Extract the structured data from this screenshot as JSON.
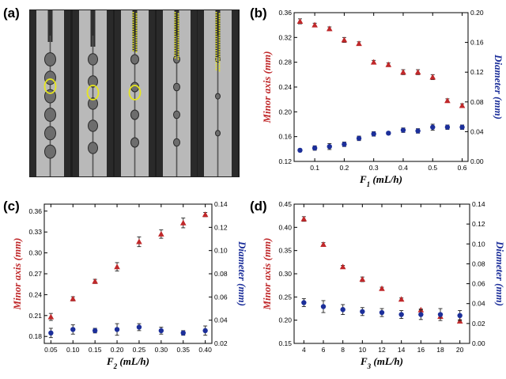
{
  "panel_a": {
    "label": "(a)",
    "description_colors": {
      "highlight": "#e6e61e",
      "frame": "#1a1a1a"
    }
  },
  "colors": {
    "left_series": "#c0282a",
    "right_series": "#1c2f9a"
  },
  "chart_data": [
    {
      "type": "scatter",
      "panel": "(b)",
      "xlabel": "F",
      "xlabel_sub": "1",
      "xlabel_unit": " (mL/h)",
      "ylabel_left": "Minor axis (mm)",
      "ylabel_right": "Diameter (mm)",
      "xlim": [
        0.03,
        0.62
      ],
      "xticks": [
        "0.1",
        "0.2",
        "0.3",
        "0.4",
        "0.5",
        "0.6"
      ],
      "xtick_values": [
        0.1,
        0.2,
        0.3,
        0.4,
        0.5,
        0.6
      ],
      "ylim_left": [
        0.12,
        0.36
      ],
      "yticks_left": [
        "0.12",
        "0.16",
        "0.20",
        "0.24",
        "0.28",
        "0.32",
        "0.36"
      ],
      "ylim_right": [
        0.0,
        0.2
      ],
      "yticks_right": [
        "0.00",
        "0.04",
        "0.08",
        "0.12",
        "0.16",
        "0.20"
      ],
      "series": [
        {
          "name": "Minor axis",
          "axis": "left",
          "marker": "triangle",
          "x": [
            0.05,
            0.1,
            0.15,
            0.2,
            0.25,
            0.3,
            0.35,
            0.4,
            0.45,
            0.5,
            0.55,
            0.6
          ],
          "y": [
            0.346,
            0.34,
            0.334,
            0.316,
            0.31,
            0.28,
            0.276,
            0.264,
            0.264,
            0.256,
            0.218,
            0.21
          ],
          "err": [
            0.004,
            0.003,
            0.003,
            0.004,
            0.003,
            0.003,
            0.003,
            0.004,
            0.004,
            0.004,
            0.003,
            0.003
          ]
        },
        {
          "name": "Diameter",
          "axis": "right",
          "marker": "circle",
          "x": [
            0.05,
            0.1,
            0.15,
            0.2,
            0.25,
            0.3,
            0.35,
            0.4,
            0.45,
            0.5,
            0.55,
            0.6
          ],
          "y": [
            0.015,
            0.018,
            0.02,
            0.023,
            0.031,
            0.037,
            0.038,
            0.042,
            0.041,
            0.046,
            0.046,
            0.046
          ],
          "err": [
            0.002,
            0.003,
            0.004,
            0.003,
            0.003,
            0.003,
            0.002,
            0.003,
            0.003,
            0.004,
            0.003,
            0.003
          ]
        }
      ]
    },
    {
      "type": "scatter",
      "panel": "(c)",
      "xlabel": "F",
      "xlabel_sub": "2",
      "xlabel_unit": " (mL/h)",
      "ylabel_left": "Minor axis (mm)",
      "ylabel_right": "Diameter (mm)",
      "xlim": [
        0.035,
        0.415
      ],
      "xticks": [
        "0.05",
        "0.10",
        "0.15",
        "0.20",
        "0.25",
        "0.30",
        "0.35",
        "0.40"
      ],
      "xtick_values": [
        0.05,
        0.1,
        0.15,
        0.2,
        0.25,
        0.3,
        0.35,
        0.4
      ],
      "ylim_left": [
        0.17,
        0.37
      ],
      "yticks_left": [
        "0.18",
        "0.21",
        "0.24",
        "0.27",
        "0.30",
        "0.33",
        "0.36"
      ],
      "ytick_values_left": [
        0.18,
        0.21,
        0.24,
        0.27,
        0.3,
        0.33,
        0.36
      ],
      "ylim_right": [
        0.02,
        0.14
      ],
      "yticks_right": [
        "0.02",
        "0.04",
        "0.06",
        "0.08",
        "0.10",
        "0.12",
        "0.14"
      ],
      "series": [
        {
          "name": "Minor axis",
          "axis": "left",
          "marker": "triangle",
          "x": [
            0.05,
            0.1,
            0.15,
            0.2,
            0.25,
            0.3,
            0.35,
            0.4
          ],
          "y": [
            0.208,
            0.234,
            0.259,
            0.28,
            0.316,
            0.327,
            0.343,
            0.355
          ],
          "err": [
            0.005,
            0.003,
            0.003,
            0.006,
            0.007,
            0.006,
            0.007,
            0.003
          ]
        },
        {
          "name": "Diameter",
          "axis": "right",
          "marker": "circle",
          "x": [
            0.05,
            0.1,
            0.15,
            0.2,
            0.25,
            0.3,
            0.35,
            0.4
          ],
          "y": [
            0.029,
            0.032,
            0.031,
            0.032,
            0.034,
            0.031,
            0.029,
            0.031
          ],
          "err": [
            0.004,
            0.004,
            0.002,
            0.005,
            0.003,
            0.003,
            0.002,
            0.004
          ]
        }
      ]
    },
    {
      "type": "scatter",
      "panel": "(d)",
      "xlabel": "F",
      "xlabel_sub": "3",
      "xlabel_unit": " (mL/h)",
      "ylabel_left": "Minor axis (mm)",
      "ylabel_right": "Diameter (mm)",
      "xlim": [
        3,
        21
      ],
      "xticks": [
        "4",
        "6",
        "8",
        "10",
        "12",
        "14",
        "16",
        "18",
        "20"
      ],
      "xtick_values": [
        4,
        6,
        8,
        10,
        12,
        14,
        16,
        18,
        20
      ],
      "ylim_left": [
        0.15,
        0.45
      ],
      "yticks_left": [
        "0.15",
        "0.20",
        "0.25",
        "0.30",
        "0.35",
        "0.40",
        "0.45"
      ],
      "ylim_right": [
        0.0,
        0.14
      ],
      "yticks_right": [
        "0.00",
        "0.02",
        "0.04",
        "0.06",
        "0.08",
        "0.10",
        "0.12",
        "0.14"
      ],
      "series": [
        {
          "name": "Minor axis",
          "axis": "left",
          "marker": "triangle",
          "x": [
            4,
            6,
            8,
            10,
            12,
            14,
            16,
            18,
            20
          ],
          "y": [
            0.418,
            0.363,
            0.315,
            0.288,
            0.268,
            0.245,
            0.222,
            0.208,
            0.198
          ],
          "err": [
            0.005,
            0.004,
            0.003,
            0.005,
            0.003,
            0.003,
            0.002,
            0.003,
            0.003
          ]
        },
        {
          "name": "Diameter",
          "axis": "right",
          "marker": "circle",
          "x": [
            4,
            6,
            8,
            10,
            12,
            14,
            16,
            18,
            20
          ],
          "y": [
            0.041,
            0.037,
            0.034,
            0.032,
            0.031,
            0.029,
            0.029,
            0.029,
            0.028
          ],
          "err": [
            0.004,
            0.006,
            0.005,
            0.004,
            0.004,
            0.004,
            0.005,
            0.006,
            0.005
          ]
        }
      ]
    }
  ]
}
